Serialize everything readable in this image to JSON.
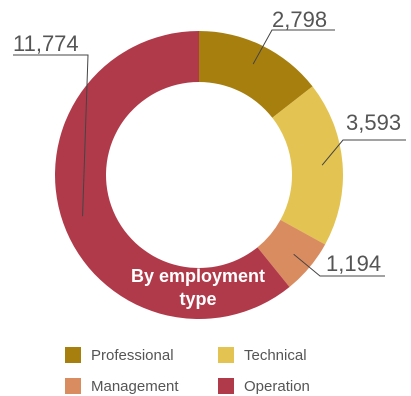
{
  "chart_data": {
    "type": "pie",
    "subtype": "donut",
    "center_label_lines": [
      "By employment",
      "type"
    ],
    "slices": [
      {
        "name": "Professional",
        "value": 2798,
        "label": "2,798",
        "color": "#a67f0f"
      },
      {
        "name": "Technical",
        "value": 3593,
        "label": "3,593",
        "color": "#e3c351"
      },
      {
        "name": "Management",
        "value": 1194,
        "label": "1,194",
        "color": "#da8c61"
      },
      {
        "name": "Operation",
        "value": 11774,
        "label": "11,774",
        "color": "#b13a4a"
      }
    ],
    "legend_position": "bottom"
  },
  "legend": {
    "items": [
      {
        "label": "Professional",
        "color": "#a67f0f"
      },
      {
        "label": "Technical",
        "color": "#e3c351"
      },
      {
        "label": "Management",
        "color": "#da8c61"
      },
      {
        "label": "Operation",
        "color": "#b13a4a"
      }
    ]
  }
}
